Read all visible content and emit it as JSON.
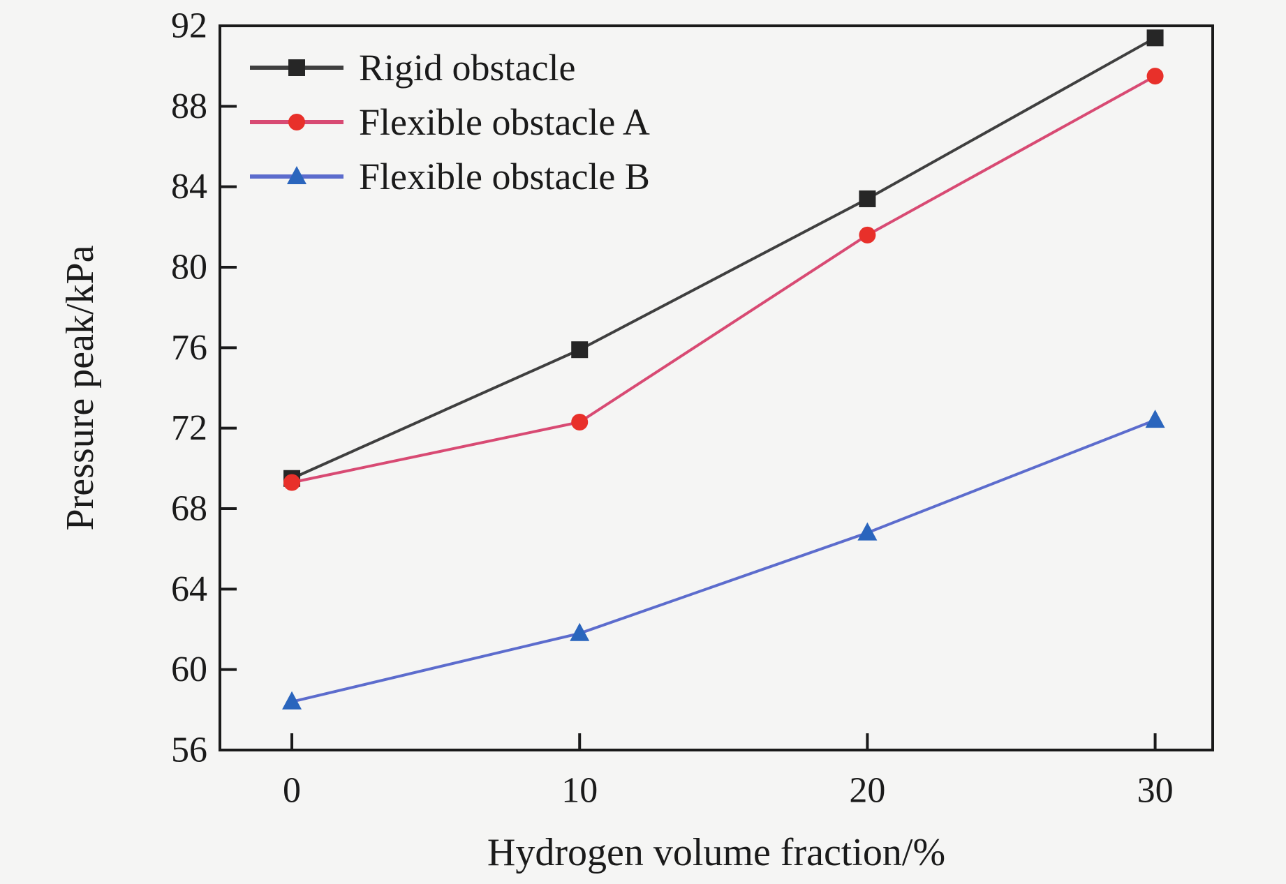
{
  "figure": {
    "background": "#f5f5f4",
    "axis_color": "#1a1a1a"
  },
  "chart_data": {
    "type": "line",
    "title": "",
    "xlabel": "Hydrogen volume fraction/%",
    "ylabel": "Pressure peak/kPa",
    "x": [
      0,
      10,
      20,
      30
    ],
    "xticks": [
      0,
      10,
      20,
      30
    ],
    "yticks": [
      56,
      60,
      64,
      68,
      72,
      76,
      80,
      84,
      88,
      92
    ],
    "xlim": [
      -2.5,
      32
    ],
    "ylim": [
      56,
      92
    ],
    "grid": false,
    "legend_position": "top-left-inside",
    "series": [
      {
        "name": "Rigid obstacle",
        "values": [
          69.5,
          75.9,
          83.4,
          91.4
        ],
        "line_color": "#3f3f3f",
        "marker": "square",
        "marker_color": "#262626"
      },
      {
        "name": "Flexible obstacle A",
        "values": [
          69.3,
          72.3,
          81.6,
          89.5
        ],
        "line_color": "#d84a73",
        "marker": "circle",
        "marker_color": "#e8302a"
      },
      {
        "name": "Flexible obstacle B",
        "values": [
          58.4,
          61.8,
          66.8,
          72.4
        ],
        "line_color": "#5c6ccd",
        "marker": "triangle-up",
        "marker_color": "#2a65bd"
      }
    ]
  }
}
